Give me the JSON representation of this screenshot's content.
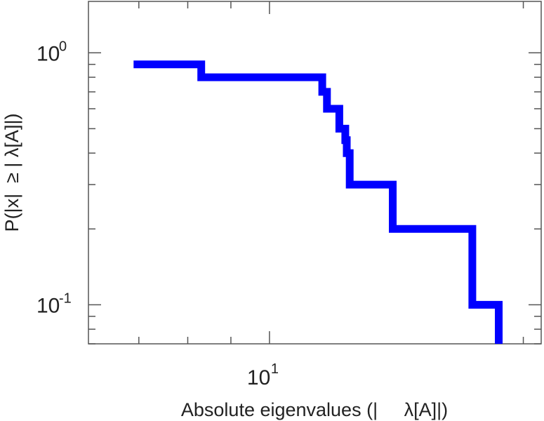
{
  "chart_data": {
    "type": "line",
    "step": true,
    "x_scale": "log",
    "y_scale": "log",
    "xlabel": "Absolute eigenvalues (|     λ[A]|)",
    "ylabel": "P(|x|  ≥ | λ[A]|)",
    "xlim": [
      6.1,
      21
    ],
    "ylim": [
      0.07,
      1.6
    ],
    "x_ticks": [
      {
        "base": "10",
        "exp": "1",
        "value": 10
      }
    ],
    "y_ticks": [
      {
        "base": "10",
        "exp": "0",
        "value": 1.0
      },
      {
        "base": "10",
        "exp": "-1",
        "value": 0.1
      }
    ],
    "grid": false,
    "series": [
      {
        "color": "#0000ff",
        "x": [
          6.9,
          8.3,
          8.3,
          11.55,
          11.55,
          11.7,
          11.7,
          12.1,
          12.1,
          12.3,
          12.3,
          12.35,
          12.35,
          12.45,
          12.45,
          14.0,
          14.0,
          17.4,
          17.4,
          18.7,
          18.7
        ],
        "y": [
          0.9,
          0.9,
          0.8,
          0.8,
          0.7,
          0.7,
          0.6,
          0.6,
          0.5,
          0.5,
          0.45,
          0.45,
          0.4,
          0.4,
          0.3,
          0.3,
          0.2,
          0.2,
          0.1,
          0.1,
          0.07
        ]
      }
    ]
  }
}
